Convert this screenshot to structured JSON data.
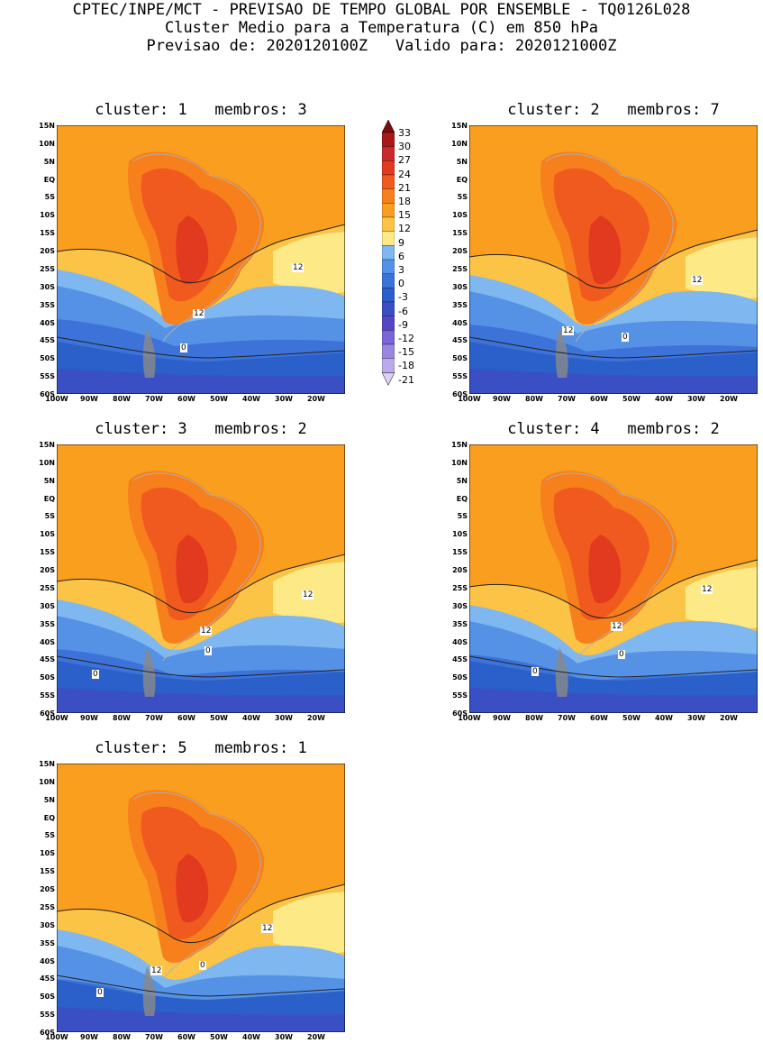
{
  "header": {
    "line1": "CPTEC/INPE/MCT - PREVISAO DE TEMPO GLOBAL POR ENSEMBLE - TQ0126L028",
    "line2": "Cluster Medio para a Temperatura (C) em 850 hPa",
    "line3": "Previsao de: 2020120100Z   Valido para: 2020121000Z"
  },
  "lat_labels": [
    "15N",
    "10N",
    "5N",
    "EQ",
    "5S",
    "10S",
    "15S",
    "20S",
    "25S",
    "30S",
    "35S",
    "40S",
    "45S",
    "50S",
    "55S",
    "60S"
  ],
  "lon_labels": [
    "100W",
    "90W",
    "80W",
    "70W",
    "60W",
    "50W",
    "40W",
    "30W",
    "20W"
  ],
  "colorbar": {
    "labels": [
      "33",
      "30",
      "27",
      "24",
      "21",
      "18",
      "15",
      "12",
      "9",
      "6",
      "3",
      "0",
      "-3",
      "-6",
      "-9",
      "-12",
      "-15",
      "-18",
      "-21"
    ],
    "colors": [
      "#7a0d0d",
      "#a81818",
      "#c82a2a",
      "#e23a1e",
      "#f05a1e",
      "#f77f1c",
      "#f99e1f",
      "#fbc447",
      "#fde985",
      "#7fb7f0",
      "#5592e6",
      "#3d73d9",
      "#2b5fc9",
      "#3a4fc4",
      "#5547c4",
      "#7a66d6",
      "#9a85e0",
      "#bba9ec",
      "#dcd0f6"
    ]
  },
  "panels": [
    {
      "title": "cluster: 1   membros: 3",
      "contour_labels": [
        "12",
        "12",
        "0"
      ]
    },
    {
      "title": "cluster: 2   membros: 7",
      "contour_labels": [
        "12",
        "12",
        "0"
      ]
    },
    {
      "title": "cluster: 3   membros: 2",
      "contour_labels": [
        "12",
        "12",
        "0",
        "0"
      ]
    },
    {
      "title": "cluster: 4   membros: 2",
      "contour_labels": [
        "12",
        "12",
        "0",
        "0"
      ]
    },
    {
      "title": "cluster: 5   membros: 1",
      "contour_labels": [
        "12",
        "12",
        "0",
        "0"
      ]
    }
  ]
}
